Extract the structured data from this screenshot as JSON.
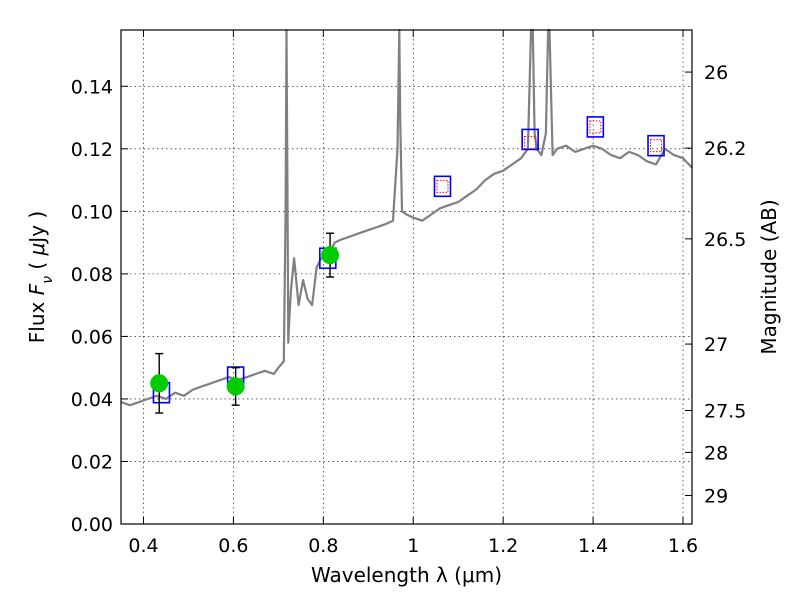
{
  "chart_data": {
    "type": "line",
    "xlabel": "Wavelength  λ (μm)",
    "ylabel": "Flux  F_ν  ( μJy )",
    "ylabel_right": "Magnitude (AB)",
    "xlim": [
      0.35,
      1.62
    ],
    "ylim": [
      0.0,
      0.158
    ],
    "grid": true,
    "x_ticks": [
      {
        "value": 0.4,
        "label": "0.4"
      },
      {
        "value": 0.6,
        "label": "0.6"
      },
      {
        "value": 0.8,
        "label": "0.8"
      },
      {
        "value": 1.0,
        "label": "1"
      },
      {
        "value": 1.2,
        "label": "1.2"
      },
      {
        "value": 1.4,
        "label": "1.4"
      },
      {
        "value": 1.6,
        "label": "1.6"
      }
    ],
    "y_ticks": [
      {
        "value": 0.0,
        "label": "0.00"
      },
      {
        "value": 0.02,
        "label": "0.02"
      },
      {
        "value": 0.04,
        "label": "0.04"
      },
      {
        "value": 0.06,
        "label": "0.06"
      },
      {
        "value": 0.08,
        "label": "0.08"
      },
      {
        "value": 0.1,
        "label": "0.10"
      },
      {
        "value": 0.12,
        "label": "0.12"
      },
      {
        "value": 0.14,
        "label": "0.14"
      }
    ],
    "mag_ticks": [
      {
        "mag": 26,
        "label": "26"
      },
      {
        "mag": 26.2,
        "label": "26.2"
      },
      {
        "mag": 26.5,
        "label": "26.5"
      },
      {
        "mag": 27,
        "label": "27"
      },
      {
        "mag": 27.5,
        "label": "27.5"
      },
      {
        "mag": 28,
        "label": "28"
      },
      {
        "mag": 29,
        "label": "29"
      }
    ],
    "series": [
      {
        "kind": "spectrum",
        "color": "#808080",
        "x": [
          0.35,
          0.37,
          0.39,
          0.41,
          0.43,
          0.45,
          0.47,
          0.49,
          0.51,
          0.53,
          0.55,
          0.57,
          0.59,
          0.61,
          0.63,
          0.65,
          0.67,
          0.69,
          0.7,
          0.712,
          0.716,
          0.718,
          0.72,
          0.722,
          0.724,
          0.728,
          0.735,
          0.745,
          0.755,
          0.765,
          0.775,
          0.785,
          0.795,
          0.805,
          0.815,
          0.825,
          0.84,
          0.86,
          0.88,
          0.9,
          0.92,
          0.94,
          0.955,
          0.965,
          0.969,
          0.971,
          0.975,
          0.985,
          1.0,
          1.02,
          1.04,
          1.06,
          1.08,
          1.1,
          1.12,
          1.14,
          1.16,
          1.18,
          1.2,
          1.22,
          1.24,
          1.255,
          1.262,
          1.266,
          1.27,
          1.275,
          1.285,
          1.295,
          1.3,
          1.303,
          1.31,
          1.32,
          1.34,
          1.36,
          1.38,
          1.4,
          1.42,
          1.44,
          1.46,
          1.48,
          1.5,
          1.52,
          1.54,
          1.56,
          1.58,
          1.6,
          1.62
        ],
        "y": [
          0.039,
          0.038,
          0.039,
          0.04,
          0.041,
          0.04,
          0.042,
          0.041,
          0.043,
          0.044,
          0.045,
          0.046,
          0.047,
          0.046,
          0.047,
          0.048,
          0.049,
          0.048,
          0.05,
          0.052,
          0.1,
          0.158,
          0.11,
          0.058,
          0.065,
          0.075,
          0.085,
          0.07,
          0.078,
          0.072,
          0.07,
          0.082,
          0.085,
          0.085,
          0.087,
          0.09,
          0.091,
          0.092,
          0.093,
          0.094,
          0.095,
          0.096,
          0.097,
          0.12,
          0.158,
          0.13,
          0.1,
          0.099,
          0.098,
          0.097,
          0.099,
          0.101,
          0.102,
          0.103,
          0.105,
          0.107,
          0.11,
          0.112,
          0.113,
          0.115,
          0.117,
          0.12,
          0.158,
          0.158,
          0.125,
          0.12,
          0.118,
          0.125,
          0.158,
          0.158,
          0.118,
          0.12,
          0.121,
          0.119,
          0.12,
          0.121,
          0.12,
          0.118,
          0.117,
          0.119,
          0.118,
          0.116,
          0.115,
          0.12,
          0.118,
          0.117,
          0.114
        ]
      },
      {
        "kind": "model-points",
        "marker": "square",
        "stroke": "#0000ff",
        "x": [
          0.44,
          0.605,
          0.81,
          1.065,
          1.26,
          1.405,
          1.54
        ],
        "y": [
          0.042,
          0.047,
          0.085,
          0.108,
          0.123,
          0.127,
          0.121
        ]
      },
      {
        "kind": "upper-limits",
        "marker": "square",
        "stroke": "#ff0000",
        "x": [
          1.065,
          1.26,
          1.405,
          1.54
        ],
        "y": [
          0.108,
          0.122,
          0.127,
          0.121
        ]
      },
      {
        "kind": "photometry",
        "marker": "circle",
        "fill": "#00cc00",
        "x": [
          0.435,
          0.605,
          0.815
        ],
        "y": [
          0.045,
          0.044,
          0.086
        ],
        "yerr": [
          0.0095,
          0.006,
          0.007
        ]
      }
    ]
  }
}
